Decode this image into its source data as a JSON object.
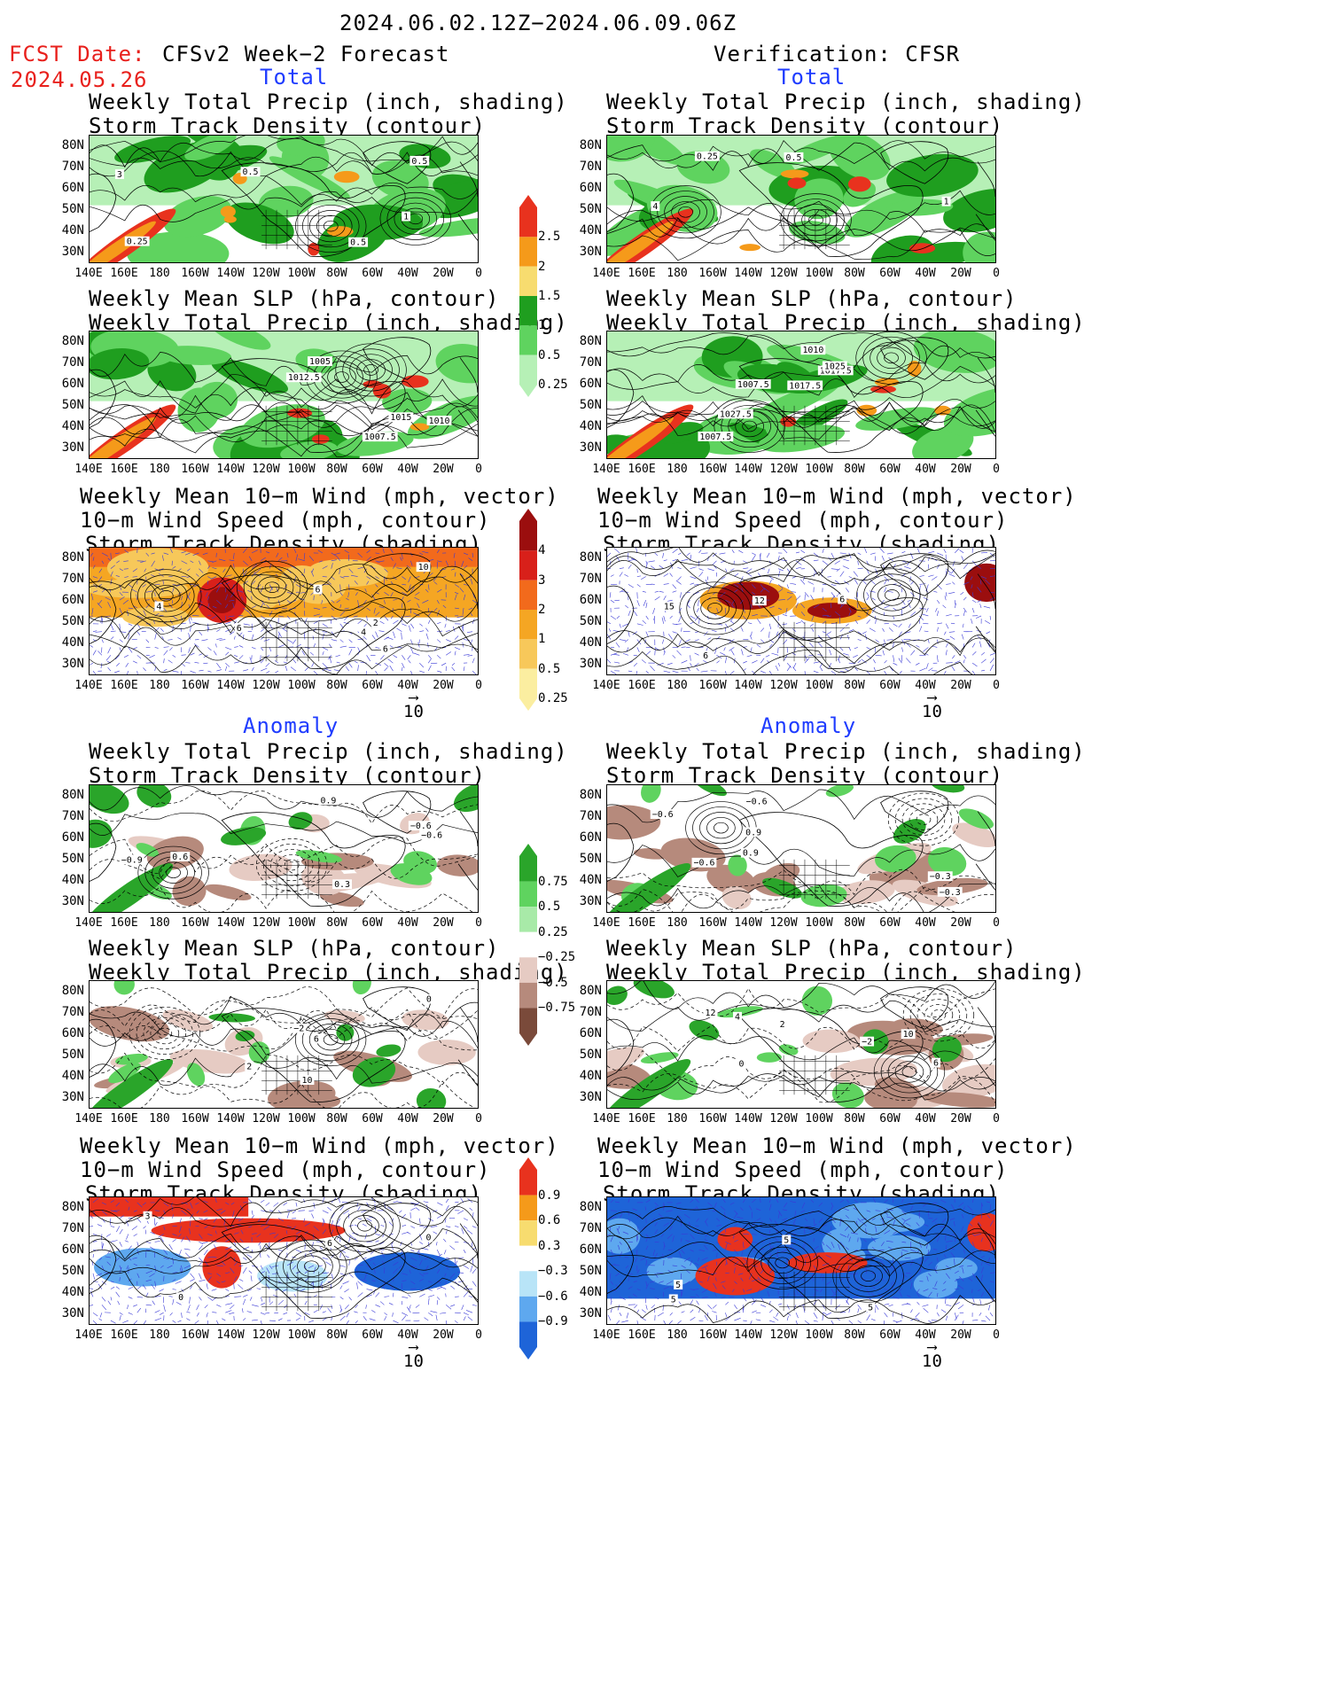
{
  "header": {
    "date_range": "2024.06.02.12Z−2024.06.09.06Z",
    "fcst_label": "FCST Date:",
    "fcst_date": "2024.05.26",
    "left_title": "CFSv2 Week−2 Forecast",
    "right_title": "Verification: CFSR"
  },
  "sections": {
    "total": "Total",
    "anomaly": "Anomaly"
  },
  "panel_titles": {
    "precip_storm": [
      "Weekly Total Precip (inch, shading)",
      "Storm Track Density (contour)"
    ],
    "slp_precip": [
      "Weekly Mean SLP (hPa, contour)",
      "Weekly Total Precip (inch, shading)"
    ],
    "wind_storm": [
      "Weekly Mean 10−m Wind (mph, vector)",
      "10−m Wind Speed (mph, contour)",
      "Storm Track Density (shading)"
    ]
  },
  "axes": {
    "lat_labels": [
      "80N",
      "70N",
      "60N",
      "50N",
      "40N",
      "30N"
    ],
    "lon_labels": [
      "140E",
      "160E",
      "180",
      "160W",
      "140W",
      "120W",
      "100W",
      "80W",
      "60W",
      "40W",
      "20W",
      "0"
    ]
  },
  "vector_scale": "10",
  "colorbars": {
    "total_precip": {
      "labels": [
        "2.5",
        "2",
        "1.5",
        "1",
        "0.5",
        "0.25"
      ],
      "colors": [
        "#e8321e",
        "#f59a1a",
        "#f7dc6f",
        "#1f9e1f",
        "#5fd35f",
        "#b6f0b6"
      ]
    },
    "total_storm": {
      "labels": [
        "4",
        "3",
        "2",
        "1",
        "0.5",
        "0.25"
      ],
      "colors": [
        "#9b0e0e",
        "#d8201a",
        "#f26a1c",
        "#f5a623",
        "#f7c85a",
        "#fbeea0"
      ]
    },
    "anom_precip": {
      "labels": [
        "0.75",
        "0.5",
        "0.25",
        "−0.25",
        "−0.5",
        "−0.75"
      ],
      "colors": [
        "#2aa52a",
        "#5fd35f",
        "#a8eaa8",
        "#ffffff",
        "#e6cbc3",
        "#b68a7c",
        "#7a4a3a"
      ]
    },
    "anom_storm": {
      "labels": [
        "0.9",
        "0.6",
        "0.3",
        "−0.3",
        "−0.6",
        "−0.9"
      ],
      "colors": [
        "#e8321e",
        "#f59a1a",
        "#f7dc6f",
        "#ffffff",
        "#b8e4f7",
        "#5ea8ef",
        "#1e64d8"
      ]
    }
  },
  "contour_labels": {
    "l1": [
      "0.5",
      "0.25",
      "0.5",
      "0.5",
      "1",
      "3"
    ],
    "r1": [
      "0.5",
      "0.25",
      "4",
      "1"
    ],
    "l2": [
      "1010",
      "1007.5",
      "1015",
      "1012.5",
      "1005"
    ],
    "r2": [
      "1027.5",
      "1017.5",
      "1025",
      "1007.5",
      "1007.5",
      "1010",
      "1017.5"
    ],
    "l3": [
      "2",
      "6",
      "4",
      "10",
      "6",
      "4",
      "6"
    ],
    "r3": [
      "12",
      "6",
      "15",
      "6"
    ],
    "l4": [
      "0.6",
      "0.9",
      "−0.6",
      "0.3",
      "−0.9",
      "−0.6"
    ],
    "r4": [
      "−0.3",
      "−0.6",
      "0.9",
      "−0.6",
      "−0.3",
      "−0.6",
      "0.9"
    ],
    "l5": [
      "2",
      "6",
      "10",
      "0",
      "−2"
    ],
    "r5": [
      "10",
      "12",
      "0",
      "4",
      "6",
      "2",
      "−2"
    ],
    "l6": [
      "0",
      "6",
      "0",
      "3"
    ],
    "r6": [
      "5",
      "5",
      "5",
      "5"
    ]
  }
}
